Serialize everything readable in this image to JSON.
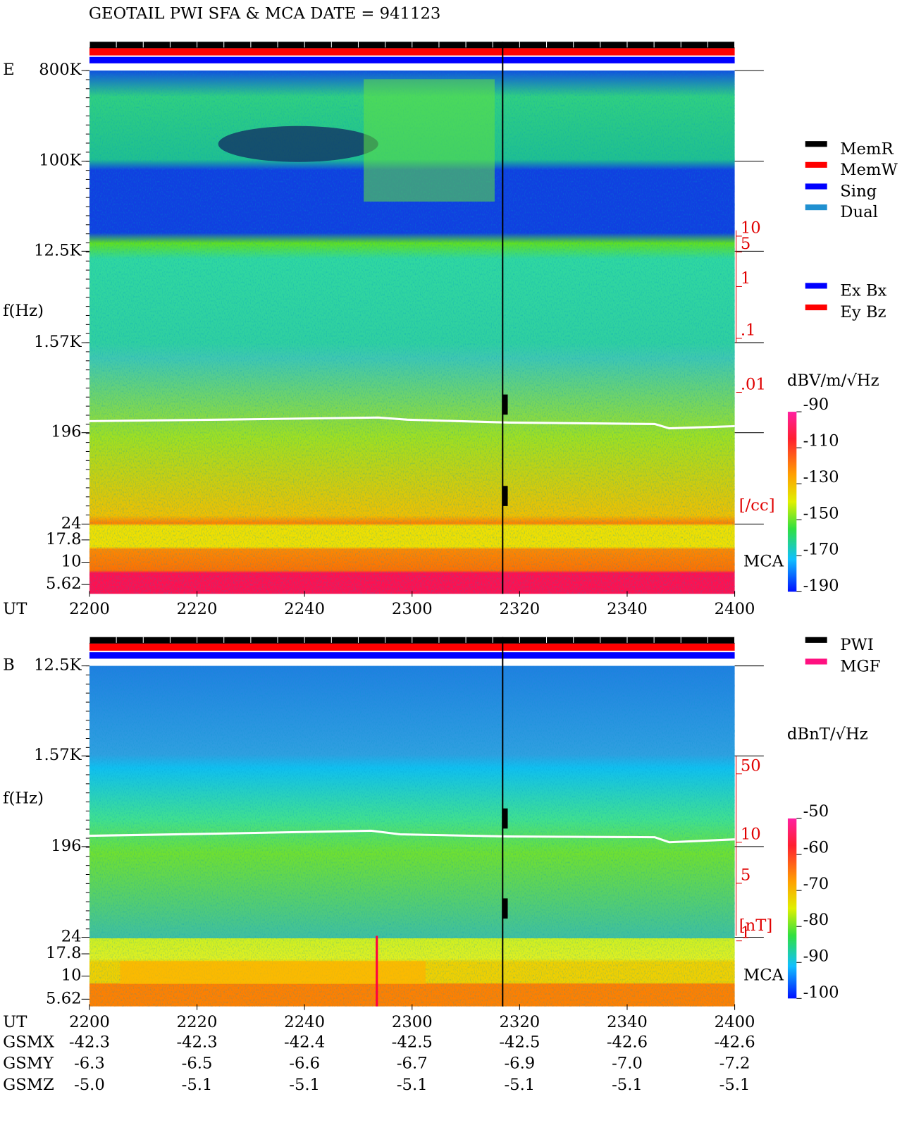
{
  "header": {
    "title": "GEOTAIL  PWI SFA & MCA   DATE = 941123"
  },
  "panels": [
    {
      "label": "E",
      "axis_title": "f(Hz)",
      "ut_label": "UT",
      "mca_label": "MCA",
      "freq_labels": [
        "800K",
        "100K",
        "12.5K",
        "1.57K",
        "196",
        "24",
        "17.8",
        "10",
        "5.62"
      ],
      "time_labels": [
        "2200",
        "2220",
        "2240",
        "2300",
        "2320",
        "2340",
        "2400"
      ],
      "density_labels": [
        "10",
        "5",
        "1",
        ".1",
        ".01"
      ],
      "density_unit": "[/cc]",
      "legend": [
        {
          "name": "MemR",
          "color": "#000000"
        },
        {
          "name": "MemW",
          "color": "#ff0000"
        },
        {
          "name": "Sing",
          "color": "#0000ff"
        },
        {
          "name": "Dual",
          "color": "#2090d0"
        }
      ],
      "legend2": [
        {
          "name": "Ex Bx",
          "color": "#0000ff"
        },
        {
          "name": "Ey Bz",
          "color": "#ff0000"
        }
      ],
      "colorbar": {
        "unit": "dBV/m/√Hz",
        "ticks": [
          -90,
          -110,
          -130,
          -150,
          -170,
          -190
        ]
      }
    },
    {
      "label": "B",
      "axis_title": "f(Hz)",
      "ut_label": "UT",
      "mca_label": "MCA",
      "freq_labels": [
        "12.5K",
        "1.57K",
        "196",
        "24",
        "17.8",
        "10",
        "5.62"
      ],
      "time_labels": [
        "2200",
        "2220",
        "2240",
        "2300",
        "2320",
        "2340",
        "2400"
      ],
      "density_labels": [
        "50",
        "10",
        "5",
        "1"
      ],
      "density_unit": "[nT]",
      "legend": [
        {
          "name": "PWI",
          "color": "#000000"
        },
        {
          "name": "MGF",
          "color": "#ff1080"
        }
      ],
      "legend2": [],
      "colorbar": {
        "unit": "dBnT/√Hz",
        "ticks": [
          -50,
          -60,
          -70,
          -80,
          -90,
          -100
        ]
      }
    }
  ],
  "orbit": {
    "rows": [
      {
        "label": "GSMX",
        "values": [
          "-42.3",
          "-42.3",
          "-42.4",
          "-42.5",
          "-42.5",
          "-42.6",
          "-42.6"
        ]
      },
      {
        "label": "GSMY",
        "values": [
          "-6.3",
          "-6.5",
          "-6.6",
          "-6.7",
          "-6.9",
          "-7.0",
          "-7.2"
        ]
      },
      {
        "label": "GSMZ",
        "values": [
          "-5.0",
          "-5.1",
          "-5.1",
          "-5.1",
          "-5.1",
          "-5.1",
          "-5.1"
        ]
      }
    ]
  }
}
